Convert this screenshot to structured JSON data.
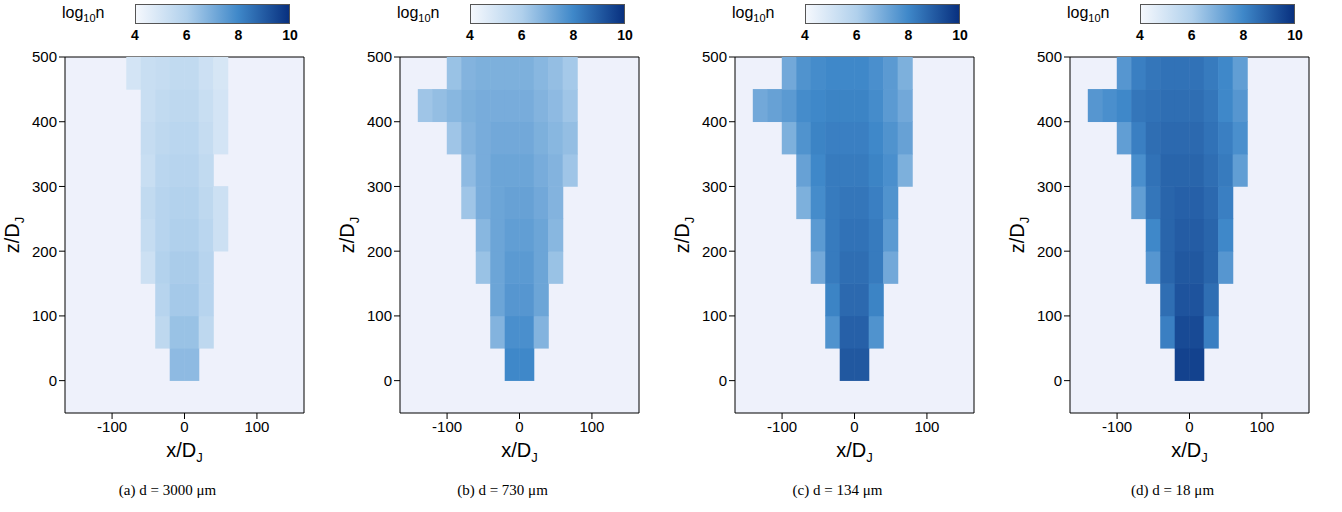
{
  "chart_data": [
    {
      "type": "heatmap",
      "title": "(a) d = 3000 μm",
      "xlabel": "x/DJ",
      "ylabel": "z/DJ",
      "xlim": [
        -165,
        165
      ],
      "ylim": [
        -50,
        500
      ],
      "xticks": [
        -100,
        0,
        100
      ],
      "yticks": [
        0,
        100,
        200,
        300,
        400,
        500
      ],
      "x": [
        -130,
        -110,
        -90,
        -70,
        -50,
        -30,
        -10,
        10,
        30,
        50,
        70,
        90,
        110
      ],
      "y": [
        25,
        75,
        125,
        175,
        225,
        275,
        325,
        375,
        425,
        475
      ],
      "cells": [
        [
          null,
          null,
          null,
          null,
          null,
          null,
          6.6,
          6.6,
          null,
          null,
          null,
          null,
          null
        ],
        [
          null,
          null,
          null,
          null,
          null,
          5.6,
          6.4,
          6.4,
          5.6,
          null,
          null,
          null,
          null
        ],
        [
          null,
          null,
          null,
          null,
          null,
          5.8,
          6.2,
          6.2,
          5.8,
          null,
          null,
          null,
          null
        ],
        [
          null,
          null,
          null,
          null,
          5.2,
          5.9,
          6.1,
          6.1,
          5.8,
          null,
          null,
          null,
          null
        ],
        [
          null,
          null,
          null,
          null,
          5.4,
          5.8,
          6.0,
          6.0,
          5.7,
          5.2,
          null,
          null,
          null
        ],
        [
          null,
          null,
          null,
          null,
          5.5,
          5.8,
          5.9,
          5.9,
          5.6,
          5.2,
          null,
          null,
          null
        ],
        [
          null,
          null,
          null,
          null,
          5.3,
          5.7,
          5.8,
          5.8,
          5.5,
          null,
          null,
          null,
          null
        ],
        [
          null,
          null,
          null,
          null,
          5.4,
          5.6,
          5.7,
          5.7,
          5.4,
          5.0,
          null,
          null,
          null
        ],
        [
          null,
          null,
          null,
          null,
          5.3,
          5.5,
          5.6,
          5.6,
          5.3,
          5.0,
          null,
          null,
          null
        ],
        [
          null,
          null,
          null,
          5.0,
          5.3,
          5.4,
          5.5,
          5.5,
          5.2,
          4.9,
          null,
          null,
          null
        ]
      ],
      "colorbar": {
        "label": "log10n",
        "range": [
          4,
          10
        ],
        "ticks": [
          4,
          6,
          8,
          10
        ]
      }
    },
    {
      "type": "heatmap",
      "title": "(b) d = 730 μm",
      "xlabel": "x/DJ",
      "ylabel": "z/DJ",
      "xlim": [
        -165,
        165
      ],
      "ylim": [
        -50,
        500
      ],
      "xticks": [
        -100,
        0,
        100
      ],
      "yticks": [
        0,
        100,
        200,
        300,
        400,
        500
      ],
      "x": [
        -130,
        -110,
        -90,
        -70,
        -50,
        -30,
        -10,
        10,
        30,
        50,
        70,
        90,
        110
      ],
      "y": [
        25,
        75,
        125,
        175,
        225,
        275,
        325,
        375,
        425,
        475
      ],
      "cells": [
        [
          null,
          null,
          null,
          null,
          null,
          null,
          8.0,
          8.0,
          null,
          null,
          null,
          null,
          null
        ],
        [
          null,
          null,
          null,
          null,
          null,
          6.8,
          7.8,
          7.8,
          6.8,
          null,
          null,
          null,
          null
        ],
        [
          null,
          null,
          null,
          null,
          null,
          7.2,
          7.6,
          7.6,
          7.2,
          null,
          null,
          null,
          null
        ],
        [
          null,
          null,
          null,
          null,
          6.4,
          7.2,
          7.5,
          7.5,
          7.2,
          6.4,
          null,
          null,
          null
        ],
        [
          null,
          null,
          null,
          null,
          6.7,
          7.2,
          7.4,
          7.4,
          7.2,
          6.7,
          null,
          null,
          null
        ],
        [
          null,
          null,
          null,
          6.3,
          7.0,
          7.2,
          7.3,
          7.3,
          7.1,
          6.8,
          null,
          null,
          null
        ],
        [
          null,
          null,
          null,
          6.6,
          7.0,
          7.2,
          7.2,
          7.2,
          7.0,
          6.8,
          6.3,
          null,
          null
        ],
        [
          null,
          null,
          6.3,
          6.8,
          7.0,
          7.1,
          7.1,
          7.1,
          6.9,
          6.7,
          6.5,
          null,
          null
        ],
        [
          6.3,
          6.5,
          6.7,
          6.9,
          7.0,
          7.0,
          7.0,
          7.0,
          6.8,
          6.6,
          6.3,
          null,
          null
        ],
        [
          null,
          null,
          6.4,
          6.8,
          6.9,
          6.9,
          6.9,
          6.9,
          6.7,
          6.5,
          6.2,
          null,
          null
        ]
      ],
      "colorbar": {
        "label": "log10n",
        "range": [
          4,
          10
        ],
        "ticks": [
          4,
          6,
          8,
          10
        ]
      }
    },
    {
      "type": "heatmap",
      "title": "(c) d = 134 μm",
      "xlabel": "x/DJ",
      "ylabel": "z/DJ",
      "xlim": [
        -165,
        165
      ],
      "ylim": [
        -50,
        500
      ],
      "xticks": [
        -100,
        0,
        100
      ],
      "yticks": [
        0,
        100,
        200,
        300,
        400,
        500
      ],
      "x": [
        -130,
        -110,
        -90,
        -70,
        -50,
        -30,
        -10,
        10,
        30,
        50,
        70,
        90,
        110
      ],
      "y": [
        25,
        75,
        125,
        175,
        225,
        275,
        325,
        375,
        425,
        475
      ],
      "cells": [
        [
          null,
          null,
          null,
          null,
          null,
          null,
          9.1,
          9.1,
          null,
          null,
          null,
          null,
          null
        ],
        [
          null,
          null,
          null,
          null,
          null,
          7.7,
          8.9,
          8.9,
          7.7,
          null,
          null,
          null,
          null
        ],
        [
          null,
          null,
          null,
          null,
          null,
          8.1,
          8.7,
          8.7,
          8.1,
          null,
          null,
          null,
          null
        ],
        [
          null,
          null,
          null,
          null,
          7.1,
          8.3,
          8.6,
          8.6,
          8.3,
          7.1,
          null,
          null,
          null
        ],
        [
          null,
          null,
          null,
          null,
          7.5,
          8.3,
          8.5,
          8.5,
          8.3,
          7.5,
          null,
          null,
          null
        ],
        [
          null,
          null,
          null,
          6.9,
          7.9,
          8.3,
          8.4,
          8.4,
          8.2,
          7.7,
          null,
          null,
          null
        ],
        [
          null,
          null,
          null,
          7.3,
          8.0,
          8.3,
          8.3,
          8.3,
          8.1,
          7.8,
          6.9,
          null,
          null
        ],
        [
          null,
          null,
          6.9,
          7.7,
          8.1,
          8.2,
          8.2,
          8.2,
          8.0,
          7.7,
          7.3,
          null,
          null
        ],
        [
          7.1,
          7.3,
          7.5,
          7.9,
          8.0,
          8.1,
          8.1,
          8.1,
          7.9,
          7.5,
          7.1,
          null,
          null
        ],
        [
          null,
          null,
          7.1,
          7.7,
          7.9,
          8.0,
          8.0,
          8.0,
          7.8,
          7.5,
          6.9,
          null,
          null
        ]
      ],
      "colorbar": {
        "label": "log10n",
        "range": [
          4,
          10
        ],
        "ticks": [
          4,
          6,
          8,
          10
        ]
      }
    },
    {
      "type": "heatmap",
      "title": "(d) d = 18 μm",
      "xlabel": "x/DJ",
      "ylabel": "z/DJ",
      "xlim": [
        -165,
        165
      ],
      "ylim": [
        -50,
        500
      ],
      "xticks": [
        -100,
        0,
        100
      ],
      "yticks": [
        0,
        100,
        200,
        300,
        400,
        500
      ],
      "x": [
        -130,
        -110,
        -90,
        -70,
        -50,
        -30,
        -10,
        10,
        30,
        50,
        70,
        90,
        110
      ],
      "y": [
        25,
        75,
        125,
        175,
        225,
        275,
        325,
        375,
        425,
        475
      ],
      "cells": [
        [
          null,
          null,
          null,
          null,
          null,
          null,
          9.6,
          9.6,
          null,
          null,
          null,
          null,
          null
        ],
        [
          null,
          null,
          null,
          null,
          null,
          8.2,
          9.4,
          9.4,
          8.2,
          null,
          null,
          null,
          null
        ],
        [
          null,
          null,
          null,
          null,
          null,
          8.6,
          9.2,
          9.2,
          8.6,
          null,
          null,
          null,
          null
        ],
        [
          null,
          null,
          null,
          null,
          7.6,
          8.8,
          9.1,
          9.1,
          8.8,
          7.6,
          null,
          null,
          null
        ],
        [
          null,
          null,
          null,
          null,
          8.0,
          8.8,
          9.0,
          9.0,
          8.8,
          8.0,
          null,
          null,
          null
        ],
        [
          null,
          null,
          null,
          7.4,
          8.4,
          8.8,
          8.9,
          8.9,
          8.7,
          8.2,
          null,
          null,
          null
        ],
        [
          null,
          null,
          null,
          7.8,
          8.5,
          8.8,
          8.8,
          8.8,
          8.6,
          8.3,
          7.4,
          null,
          null
        ],
        [
          null,
          null,
          7.4,
          8.2,
          8.6,
          8.7,
          8.7,
          8.7,
          8.5,
          8.2,
          7.8,
          null,
          null
        ],
        [
          7.6,
          7.8,
          8.0,
          8.4,
          8.5,
          8.6,
          8.6,
          8.6,
          8.4,
          8.0,
          7.6,
          null,
          null
        ],
        [
          null,
          null,
          7.6,
          8.2,
          8.4,
          8.5,
          8.5,
          8.5,
          8.3,
          8.0,
          7.4,
          null,
          null
        ]
      ],
      "colorbar": {
        "label": "log10n",
        "range": [
          4,
          10
        ],
        "ticks": [
          4,
          6,
          8,
          10
        ]
      }
    }
  ]
}
